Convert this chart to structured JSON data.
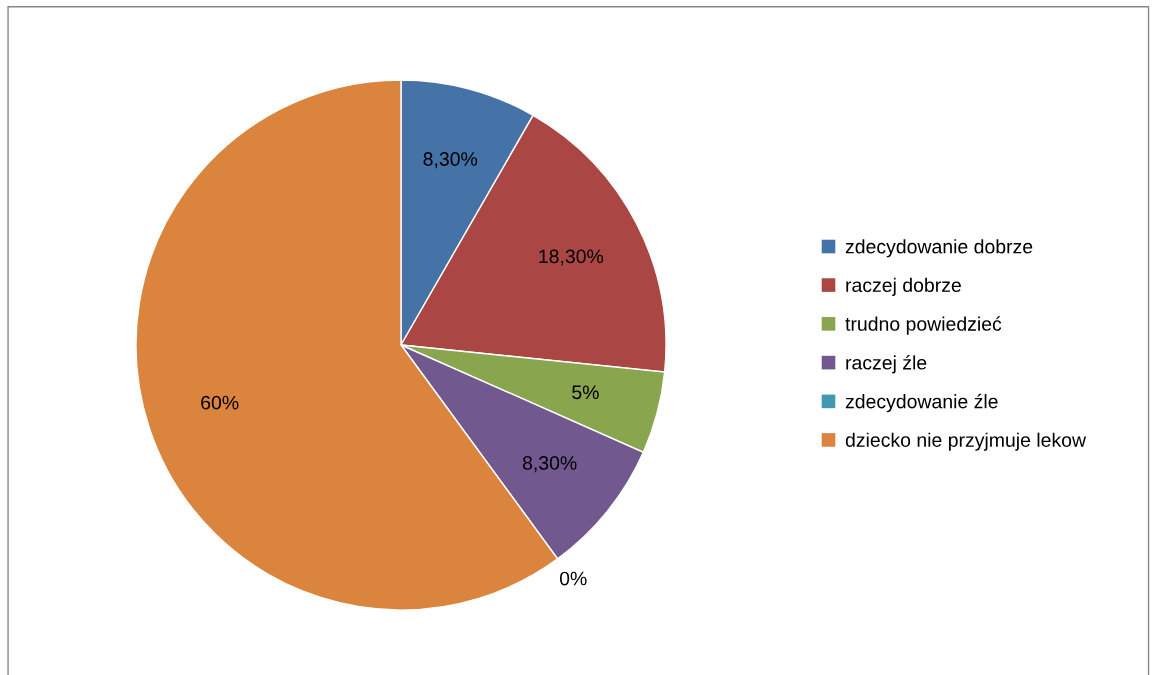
{
  "chart_data": {
    "type": "pie",
    "categories": [
      "zdecydowanie dobrze",
      "raczej dobrze",
      "trudno powiedzieć",
      "raczej źle",
      "zdecydowanie źle",
      "dziecko nie przyjmuje lekow"
    ],
    "values": [
      8.3,
      18.3,
      5,
      8.3,
      0,
      60
    ],
    "value_labels": [
      "8,30%",
      "18,30%",
      "5%",
      "8,30%",
      "0%",
      "60%"
    ],
    "colors": [
      "#4572a7",
      "#aa4643",
      "#89a54e",
      "#71588f",
      "#4198af",
      "#db843d"
    ],
    "legend": "right"
  }
}
